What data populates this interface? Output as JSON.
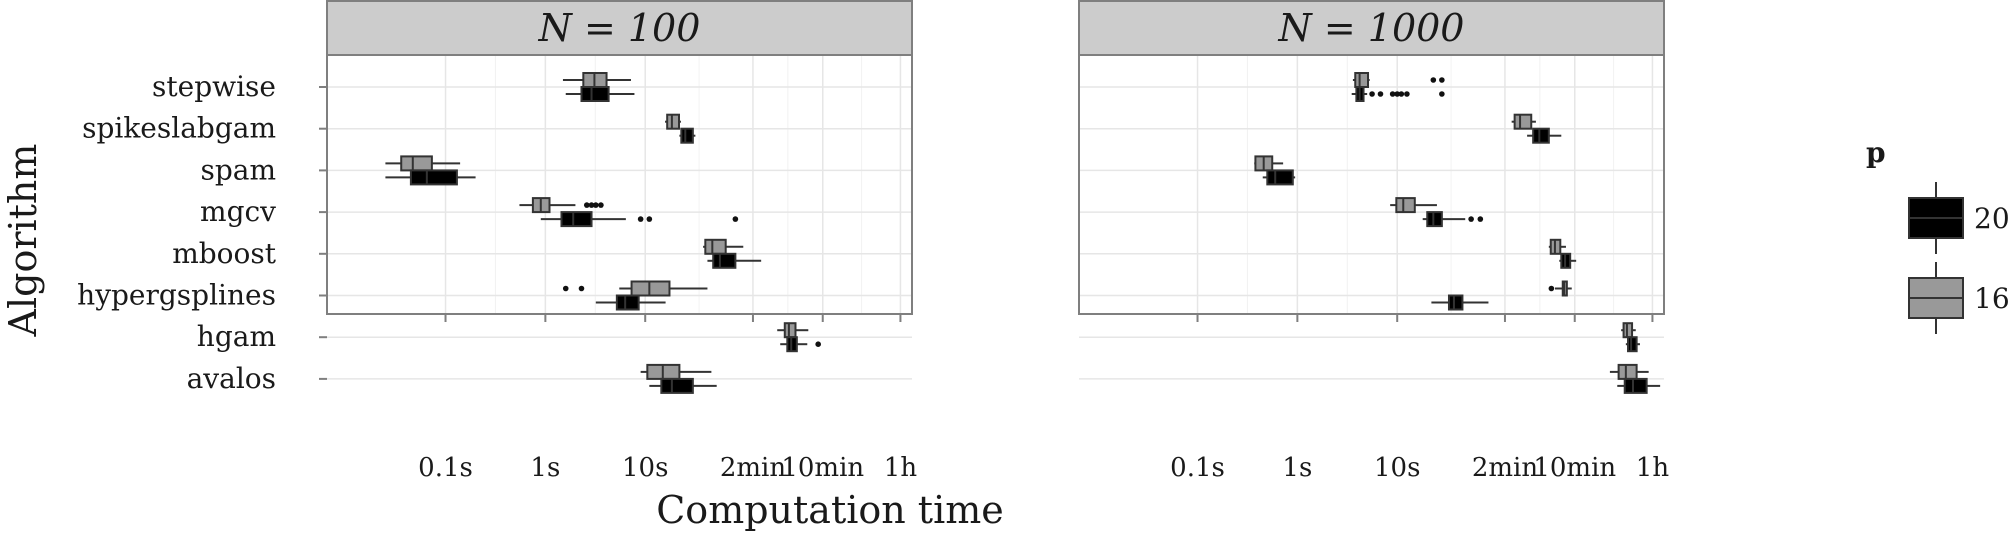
{
  "chart_data": {
    "type": "boxplot",
    "xlabel": "Computation time",
    "ylabel": "Algorithm",
    "x_scale": "log10",
    "x_unit": "seconds",
    "x_ticks": [
      {
        "value": 0.1,
        "label": "0.1s"
      },
      {
        "value": 1,
        "label": "1s"
      },
      {
        "value": 10,
        "label": "10s"
      },
      {
        "value": 120,
        "label": "2min"
      },
      {
        "value": 600,
        "label": "10min"
      },
      {
        "value": 3600,
        "label": "1h"
      }
    ],
    "xlim": [
      0.0065,
      4700
    ],
    "grid": true,
    "categories": [
      "stepwise",
      "spikeslabgam",
      "spam",
      "mgcv",
      "mboost",
      "hypergsplines",
      "hgam",
      "avalos"
    ],
    "legend": {
      "title": "p",
      "position": "right",
      "entries": [
        {
          "label": "20",
          "color": "#000000"
        },
        {
          "label": "16",
          "color": "#999999"
        }
      ]
    },
    "panels": [
      {
        "label": "N = 100",
        "boxes": [
          {
            "algorithm": "stepwise",
            "p": "16",
            "whislo": 1.5,
            "q1": 2.4,
            "med": 3.1,
            "q3": 4.1,
            "whishi": 7.2,
            "outliers": []
          },
          {
            "algorithm": "stepwise",
            "p": "20",
            "whislo": 1.6,
            "q1": 2.3,
            "med": 2.9,
            "q3": 4.3,
            "whishi": 7.8,
            "outliers": []
          },
          {
            "algorithm": "spikeslabgam",
            "p": "16",
            "whislo": 15.8,
            "q1": 16.6,
            "med": 18.5,
            "q3": 21.8,
            "whishi": 22.8,
            "outliers": []
          },
          {
            "algorithm": "spikeslabgam",
            "p": "20",
            "whislo": 22.0,
            "q1": 23.0,
            "med": 25.2,
            "q3": 30.0,
            "whishi": 31.8,
            "outliers": []
          },
          {
            "algorithm": "spam",
            "p": "16",
            "whislo": 0.025,
            "q1": 0.036,
            "med": 0.047,
            "q3": 0.073,
            "whishi": 0.14,
            "outliers": []
          },
          {
            "algorithm": "spam",
            "p": "20",
            "whislo": 0.025,
            "q1": 0.045,
            "med": 0.065,
            "q3": 0.13,
            "whishi": 0.2,
            "outliers": []
          },
          {
            "algorithm": "mgcv",
            "p": "16",
            "whislo": 0.55,
            "q1": 0.75,
            "med": 0.9,
            "q3": 1.1,
            "whishi": 2.0,
            "outliers": [
              2.6,
              2.9,
              3.2,
              3.6
            ]
          },
          {
            "algorithm": "mgcv",
            "p": "20",
            "whislo": 0.9,
            "q1": 1.45,
            "med": 1.9,
            "q3": 2.9,
            "whishi": 6.4,
            "outliers": [
              9.0,
              11.0,
              80.0
            ]
          },
          {
            "algorithm": "mboost",
            "p": "16",
            "whislo": 38.0,
            "q1": 40.0,
            "med": 47.0,
            "q3": 64.0,
            "whishi": 96.0,
            "outliers": []
          },
          {
            "algorithm": "mboost",
            "p": "20",
            "whislo": 42.0,
            "q1": 48.0,
            "med": 56.0,
            "q3": 80.0,
            "whishi": 145.0,
            "outliers": []
          },
          {
            "algorithm": "hypergsplines",
            "p": "16",
            "whislo": 5.5,
            "q1": 7.3,
            "med": 11.0,
            "q3": 17.5,
            "whishi": 42.0,
            "outliers": [
              1.6,
              2.3
            ]
          },
          {
            "algorithm": "hypergsplines",
            "p": "20",
            "whislo": 3.2,
            "q1": 5.2,
            "med": 6.3,
            "q3": 8.6,
            "whishi": 16.0,
            "outliers": []
          },
          {
            "algorithm": "hgam",
            "p": "16",
            "whislo": 210.0,
            "q1": 250.0,
            "med": 275.0,
            "q3": 320.0,
            "whishi": 430.0,
            "outliers": []
          },
          {
            "algorithm": "hgam",
            "p": "20",
            "whislo": 225.0,
            "q1": 265.0,
            "med": 290.0,
            "q3": 330.0,
            "whishi": 420.0,
            "outliers": [
              540.0
            ]
          },
          {
            "algorithm": "avalos",
            "p": "16",
            "whislo": 9.0,
            "q1": 10.5,
            "med": 15.0,
            "q3": 22.0,
            "whishi": 46.0,
            "outliers": []
          },
          {
            "algorithm": "avalos",
            "p": "20",
            "whislo": 11.0,
            "q1": 14.5,
            "med": 18.5,
            "q3": 30.0,
            "whishi": 52.0,
            "outliers": []
          }
        ]
      },
      {
        "label": "N = 1000",
        "boxes": [
          {
            "algorithm": "stepwise",
            "p": "16",
            "whislo": 3.6,
            "q1": 3.8,
            "med": 4.2,
            "q3": 5.1,
            "whishi": 5.3,
            "outliers": [
              23.0,
              28.0
            ]
          },
          {
            "algorithm": "stepwise",
            "p": "20",
            "whislo": 3.5,
            "q1": 3.9,
            "med": 4.2,
            "q3": 4.6,
            "whishi": 5.0,
            "outliers": [
              5.6,
              6.8,
              9.0,
              10.0,
              11.0,
              12.5,
              28.0
            ]
          },
          {
            "algorithm": "spikeslabgam",
            "p": "16",
            "whislo": 140.0,
            "q1": 150.0,
            "med": 170.0,
            "q3": 220.0,
            "whishi": 245.0,
            "outliers": []
          },
          {
            "algorithm": "spikeslabgam",
            "p": "20",
            "whislo": 200.0,
            "q1": 230.0,
            "med": 265.0,
            "q3": 330.0,
            "whishi": 440.0,
            "outliers": []
          },
          {
            "algorithm": "spam",
            "p": "16",
            "whislo": 0.37,
            "q1": 0.38,
            "med": 0.46,
            "q3": 0.56,
            "whishi": 0.72,
            "outliers": []
          },
          {
            "algorithm": "spam",
            "p": "20",
            "whislo": 0.45,
            "q1": 0.5,
            "med": 0.6,
            "q3": 0.9,
            "whishi": 0.95,
            "outliers": []
          },
          {
            "algorithm": "mgcv",
            "p": "16",
            "whislo": 8.5,
            "q1": 9.8,
            "med": 11.5,
            "q3": 15.0,
            "whishi": 25.0,
            "outliers": []
          },
          {
            "algorithm": "mgcv",
            "p": "20",
            "whislo": 18.0,
            "q1": 20.0,
            "med": 23.0,
            "q3": 28.0,
            "whishi": 48.0,
            "outliers": [
              55.0,
              68.0
            ]
          },
          {
            "algorithm": "mboost",
            "p": "16",
            "whislo": 330.0,
            "q1": 345.0,
            "med": 380.0,
            "q3": 430.0,
            "whishi": 490.0,
            "outliers": []
          },
          {
            "algorithm": "mboost",
            "p": "20",
            "whislo": 420.0,
            "q1": 440.0,
            "med": 480.0,
            "q3": 540.0,
            "whishi": 620.0,
            "outliers": []
          },
          {
            "algorithm": "hypergsplines",
            "p": "16",
            "whislo": 380.0,
            "q1": 455.0,
            "med": 470.0,
            "q3": 500.0,
            "whishi": 560.0,
            "outliers": [
              350.0
            ]
          },
          {
            "algorithm": "hypergsplines",
            "p": "20",
            "whislo": 22.0,
            "q1": 33.0,
            "med": 37.0,
            "q3": 45.0,
            "whishi": 82.0,
            "outliers": []
          },
          {
            "algorithm": "hgam",
            "p": "16",
            "whislo": 1750.0,
            "q1": 1850.0,
            "med": 2000.0,
            "q3": 2250.0,
            "whishi": 2450.0,
            "outliers": []
          },
          {
            "algorithm": "hgam",
            "p": "20",
            "whislo": 1950.0,
            "q1": 2050.0,
            "med": 2200.0,
            "q3": 2500.0,
            "whishi": 2700.0,
            "outliers": []
          },
          {
            "algorithm": "avalos",
            "p": "16",
            "whislo": 1350.0,
            "q1": 1650.0,
            "med": 1950.0,
            "q3": 2500.0,
            "whishi": 3300.0,
            "outliers": []
          },
          {
            "algorithm": "avalos",
            "p": "20",
            "whislo": 1600.0,
            "q1": 1900.0,
            "med": 2300.0,
            "q3": 3150.0,
            "whishi": 4300.0,
            "outliers": []
          }
        ]
      }
    ]
  }
}
